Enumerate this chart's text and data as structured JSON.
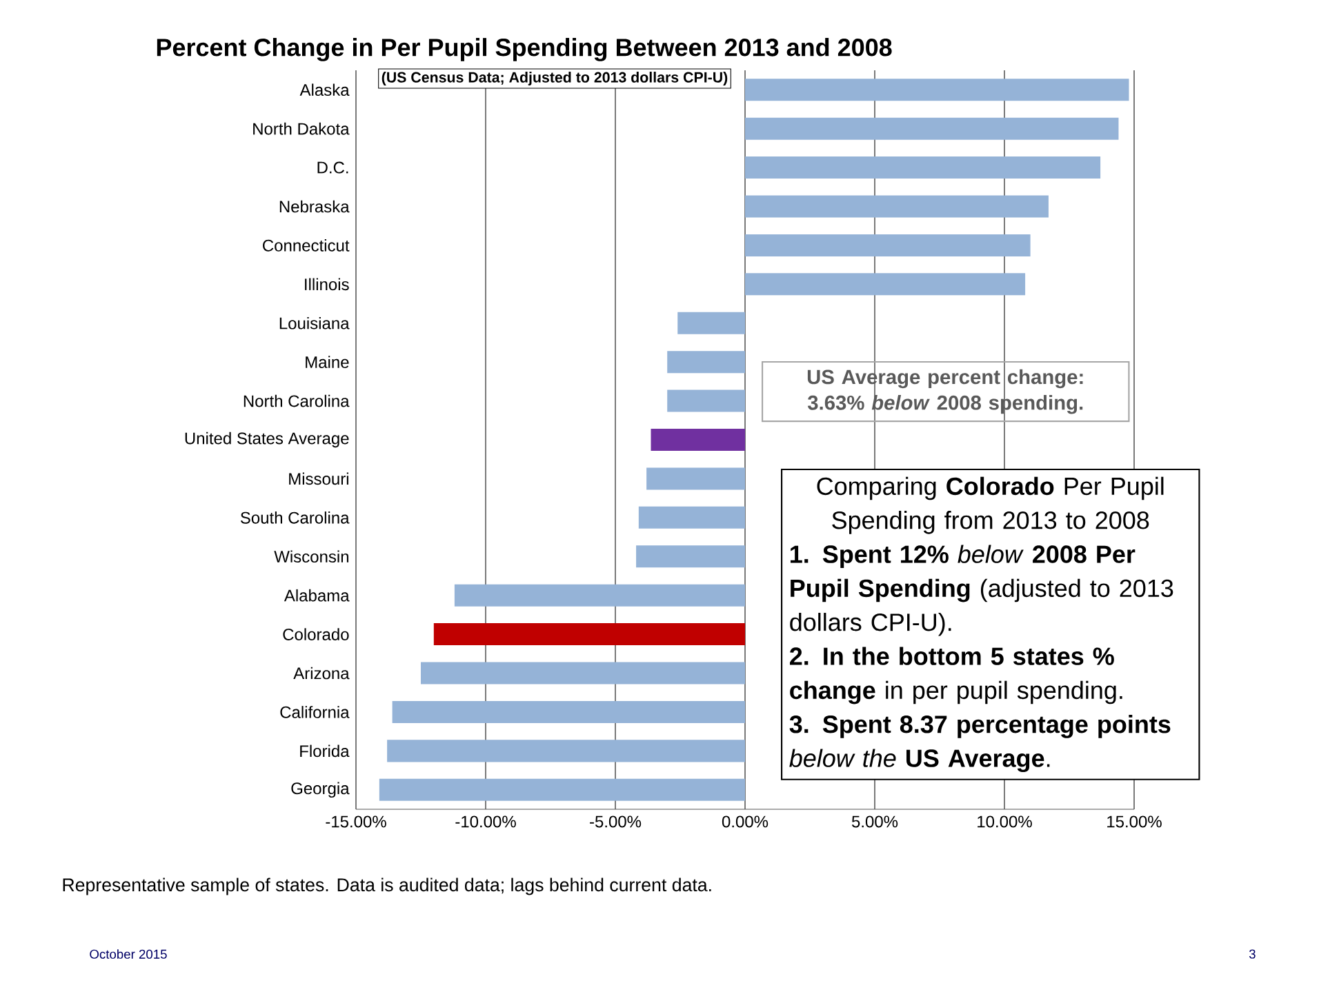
{
  "chart_data": {
    "type": "bar",
    "orientation": "horizontal",
    "title": "Percent Change in Per Pupil Spending Between 2013 and 2008",
    "subtitle": "(US Census Data;  Adjusted to 2013 dollars CPI-U)",
    "categories": [
      "Alaska",
      "North Dakota",
      "D.C.",
      "Nebraska",
      "Connecticut",
      "Illinois",
      "Louisiana",
      "Maine",
      "North Carolina",
      "United States Average",
      "Missouri",
      "South Carolina",
      "Wisconsin",
      "Alabama",
      "Colorado",
      "Arizona",
      "California",
      "Florida",
      "Georgia"
    ],
    "values": [
      14.8,
      14.4,
      13.7,
      11.7,
      11.0,
      10.8,
      -2.6,
      -3.0,
      -3.0,
      -3.63,
      -3.8,
      -4.1,
      -4.2,
      -11.2,
      -12.0,
      -12.5,
      -13.6,
      -13.8,
      -14.1
    ],
    "colors": [
      "#95b3d7",
      "#95b3d7",
      "#95b3d7",
      "#95b3d7",
      "#95b3d7",
      "#95b3d7",
      "#95b3d7",
      "#95b3d7",
      "#95b3d7",
      "#7030a0",
      "#95b3d7",
      "#95b3d7",
      "#95b3d7",
      "#95b3d7",
      "#c00000",
      "#95b3d7",
      "#95b3d7",
      "#95b3d7",
      "#95b3d7"
    ],
    "xlim": [
      -15,
      15
    ],
    "xticks": [
      {
        "value": -15,
        "label": "-15.00%"
      },
      {
        "value": -10,
        "label": "-10.00%"
      },
      {
        "value": -5,
        "label": "-5.00%"
      },
      {
        "value": 0,
        "label": "0.00%"
      },
      {
        "value": 5,
        "label": "5.00%"
      },
      {
        "value": 10,
        "label": "10.00%"
      },
      {
        "value": 15,
        "label": "15.00%"
      }
    ],
    "grid": "x",
    "annotations": [
      "US Average percent change: 3.63% *below* 2008 spending.",
      "Comparing **Colorado** Per Pupil Spending from 2013 to 2008",
      "**1.  Spent 12%** *below* **2008 Per Pupil Spending** (adjusted to 2013 dollars CPI-U).",
      "**2.  In the bottom 5 states % change** in per pupil spending.",
      "**3.  Spent 8.37 percentage points** *below the* **US Average**.",
      "Representative sample of states.  Data is audited data; lags behind current data.",
      "October 2015",
      "3"
    ]
  }
}
